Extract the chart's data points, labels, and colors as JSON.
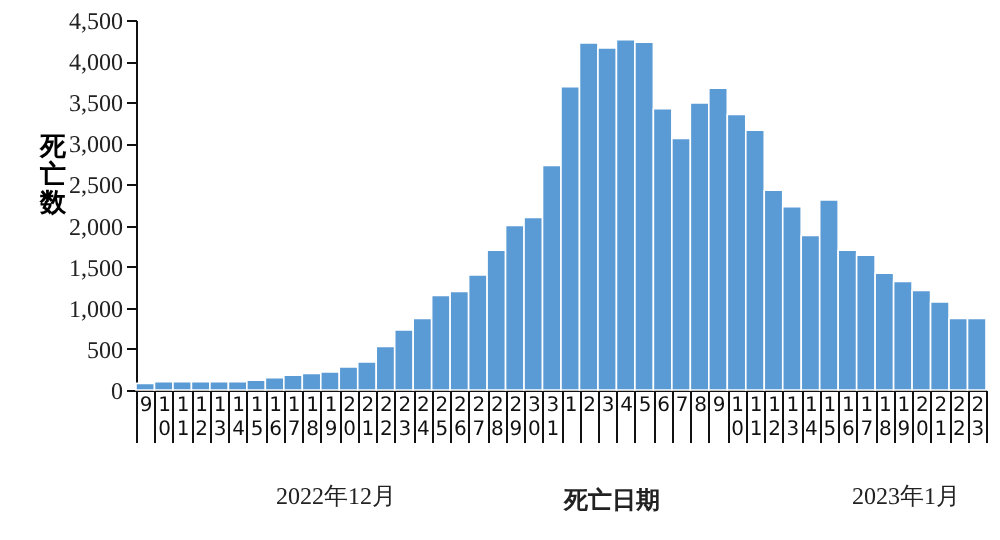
{
  "chart_data": {
    "type": "bar",
    "xlabel": "死亡日期",
    "ylabel": "死亡数",
    "categories": [
      "9",
      "10",
      "11",
      "12",
      "13",
      "14",
      "15",
      "16",
      "17",
      "18",
      "19",
      "20",
      "21",
      "22",
      "23",
      "24",
      "25",
      "26",
      "27",
      "28",
      "29",
      "30",
      "31",
      "1",
      "2",
      "3",
      "4",
      "5",
      "6",
      "7",
      "8",
      "9",
      "10",
      "11",
      "12",
      "13",
      "14",
      "15",
      "16",
      "17",
      "18",
      "19",
      "20",
      "21",
      "22",
      "23"
    ],
    "values": [
      80,
      100,
      100,
      100,
      100,
      100,
      120,
      150,
      180,
      200,
      220,
      280,
      340,
      530,
      730,
      870,
      1150,
      1200,
      1400,
      1700,
      2000,
      2100,
      2730,
      3690,
      4220,
      4160,
      4260,
      4230,
      3420,
      3060,
      3490,
      3670,
      3350,
      3160,
      2430,
      2230,
      1880,
      2310,
      1700,
      1640,
      1420,
      1320,
      1210,
      1070,
      870,
      870
    ],
    "color": "#5b9bd5",
    "ylim": [
      0,
      4500
    ],
    "yticks": [
      {
        "value": 0,
        "label": "0"
      },
      {
        "value": 500,
        "label": "500"
      },
      {
        "value": 1000,
        "label": "1,000"
      },
      {
        "value": 1500,
        "label": "1,500"
      },
      {
        "value": 2000,
        "label": "2,000"
      },
      {
        "value": 2500,
        "label": "2,500"
      },
      {
        "value": 3000,
        "label": "3,000"
      },
      {
        "value": 3500,
        "label": "3,500"
      },
      {
        "value": 4000,
        "label": "4,000"
      },
      {
        "value": 4500,
        "label": "4,500"
      }
    ],
    "annotations": [
      "2022年12月",
      "2023年1月"
    ],
    "grid": false
  }
}
